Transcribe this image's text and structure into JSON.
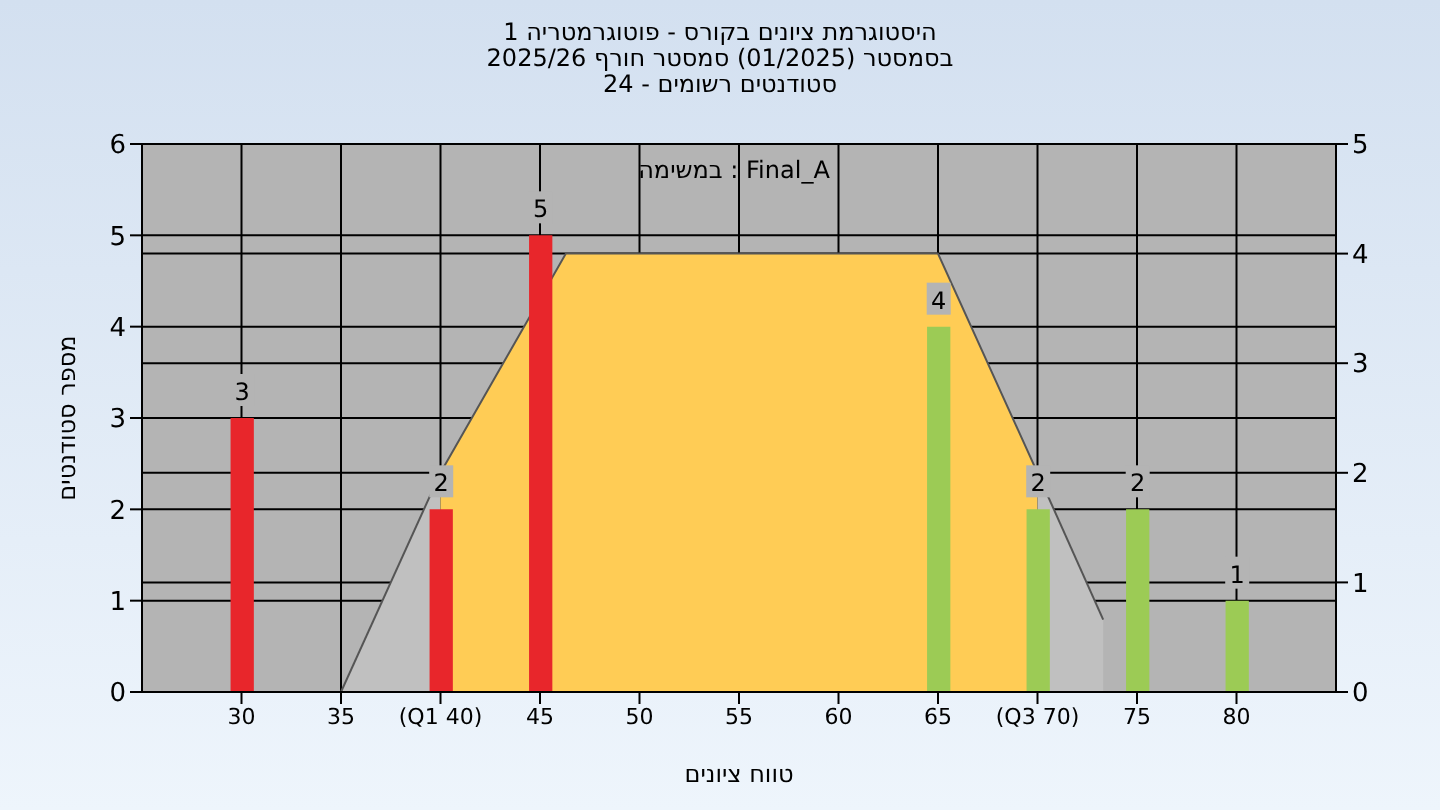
{
  "chart_data": {
    "type": "bar",
    "title": "היסטוגרמת ציונים בקורס - פוטוגרמטריה 1",
    "subtitle": "בסמסטר  (01/2025)  סמסטר חורף 2025/26\nסטודנטים רשומים - 24",
    "xlabel": "טווח ציונים",
    "ylabel": "מספר סטודנטים",
    "annotations": [
      "במשימה : Final_A"
    ],
    "x": [
      30,
      35,
      40,
      45,
      50,
      55,
      60,
      65,
      70,
      75,
      80
    ],
    "series": [
      {
        "type": "area",
        "axis": "y2",
        "color": "#c0c0c0",
        "x": [
          35,
          40
        ],
        "values": [
          0,
          2
        ]
      },
      {
        "type": "area",
        "axis": "y2",
        "color": "#ffcc55",
        "x": [
          40,
          46.3,
          65,
          70
        ],
        "values": [
          2,
          4,
          4,
          2
        ]
      },
      {
        "type": "area",
        "axis": "y2",
        "color": "#c0c0c0",
        "x": [
          70,
          73.3
        ],
        "values": [
          2,
          0.66
        ]
      },
      {
        "colors": [
          "#e8262b",
          "#e8262b",
          "#e8262b",
          "#e8262b",
          "#e8262b",
          "#e8262b",
          "#e8262b",
          "#9ccb55",
          "#9ccb55",
          "#9ccb55",
          "#9ccb55"
        ],
        "values": [
          3,
          0,
          2,
          5,
          0,
          0,
          0,
          4,
          2,
          2,
          1
        ],
        "value_labels": [
          "3",
          null,
          "2",
          "5",
          null,
          null,
          null,
          "4",
          "2",
          "2",
          "1"
        ]
      }
    ],
    "xlim": [
      25,
      85
    ],
    "xticks": [
      30,
      35,
      {
        "value": 40,
        "label": "(Q1 40)"
      },
      45,
      50,
      55,
      60,
      65,
      {
        "value": 70,
        "label": "(Q3 70)"
      },
      75,
      80
    ],
    "ylim": [
      0,
      6
    ],
    "yticks": [
      0,
      1,
      2,
      3,
      4,
      5,
      6
    ],
    "y2lim": [
      0,
      5
    ],
    "y2ticks": [
      0,
      1,
      2,
      3,
      4,
      5
    ],
    "grid": true,
    "legend": false
  }
}
